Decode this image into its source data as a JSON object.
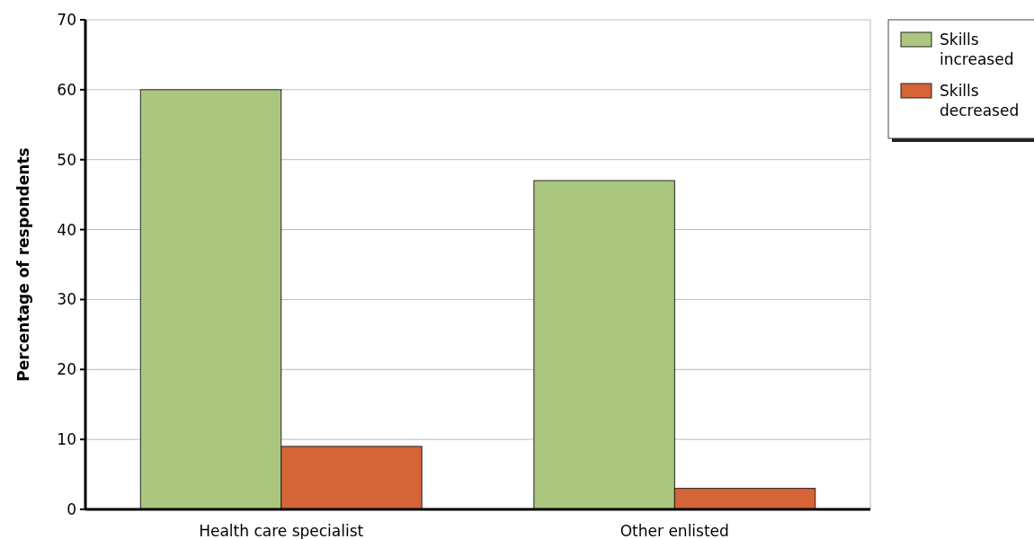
{
  "chart_data": {
    "type": "bar",
    "ylabel": "Percentage of respondents",
    "categories": [
      "Health care specialist",
      "Other enlisted"
    ],
    "series": [
      {
        "name": "Skills increased",
        "color": "#abc77f",
        "values": [
          60,
          47
        ]
      },
      {
        "name": "Skills decreased",
        "color": "#d56437",
        "values": [
          9,
          3
        ]
      }
    ],
    "ylim": [
      0,
      70
    ],
    "yticks": [
      0,
      10,
      20,
      30,
      40,
      50,
      60,
      70
    ],
    "grid": "y",
    "legend": "top right"
  }
}
